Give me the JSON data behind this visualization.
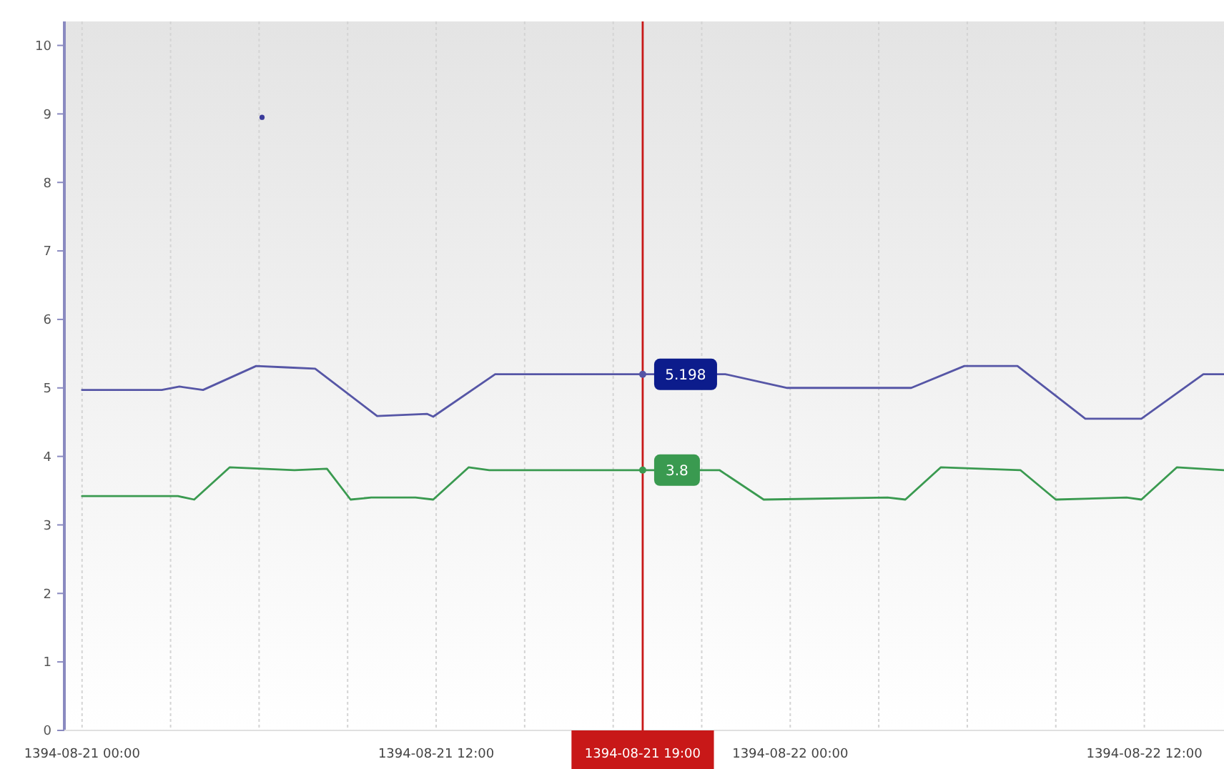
{
  "chart_data": {
    "type": "line",
    "xlim": [
      "1394-08-20T23:24",
      "1394-08-22T14:42"
    ],
    "ylim": [
      0,
      10.35
    ],
    "xticks": [
      {
        "value": "1394-08-21T00:00",
        "label": "1394-08-21 00:00"
      },
      {
        "value": "1394-08-21T03:00",
        "label": null
      },
      {
        "value": "1394-08-21T06:00",
        "label": null
      },
      {
        "value": "1394-08-21T09:00",
        "label": null
      },
      {
        "value": "1394-08-21T12:00",
        "label": "1394-08-21 12:00"
      },
      {
        "value": "1394-08-21T15:00",
        "label": null
      },
      {
        "value": "1394-08-21T18:00",
        "label": null
      },
      {
        "value": "1394-08-21T21:00",
        "label": null
      },
      {
        "value": "1394-08-22T00:00",
        "label": "1394-08-22 00:00"
      },
      {
        "value": "1394-08-22T03:00",
        "label": null
      },
      {
        "value": "1394-08-22T06:00",
        "label": null
      },
      {
        "value": "1394-08-22T09:00",
        "label": null
      },
      {
        "value": "1394-08-22T12:00",
        "label": "1394-08-22 12:00"
      }
    ],
    "yticks": [
      0,
      1,
      2,
      3,
      4,
      5,
      6,
      7,
      8,
      9,
      10
    ],
    "grid": "x",
    "marker": "none",
    "line_style": "solid",
    "series": [
      {
        "color": "#5656a6",
        "x": [
          "1394-08-21T00:00",
          "1394-08-21T02:42",
          "1394-08-21T03:18",
          "1394-08-21T04:06",
          "1394-08-21T05:54",
          "1394-08-21T06:54",
          "1394-08-21T07:54",
          "1394-08-21T10:00",
          "1394-08-21T11:42",
          "1394-08-21T11:54",
          "1394-08-21T14:00",
          "1394-08-21T19:00",
          "1394-08-21T21:48",
          "1394-08-21T23:54",
          "1394-08-22T04:06",
          "1394-08-22T05:54",
          "1394-08-22T07:42",
          "1394-08-22T10:00",
          "1394-08-22T11:54",
          "1394-08-22T14:00",
          "1394-08-22T14:42"
        ],
        "values": [
          4.97,
          4.97,
          5.02,
          4.97,
          5.32,
          5.3,
          5.28,
          4.59,
          4.62,
          4.58,
          5.2,
          5.2,
          5.2,
          5.0,
          5.0,
          5.32,
          5.32,
          4.55,
          4.55,
          5.2,
          5.2
        ]
      },
      {
        "color": "#3a9a50",
        "x": [
          "1394-08-21T00:00",
          "1394-08-21T03:15",
          "1394-08-21T03:48",
          "1394-08-21T05:00",
          "1394-08-21T07:12",
          "1394-08-21T08:18",
          "1394-08-21T09:06",
          "1394-08-21T09:48",
          "1394-08-21T11:18",
          "1394-08-21T11:54",
          "1394-08-21T13:06",
          "1394-08-21T13:48",
          "1394-08-21T19:00",
          "1394-08-21T21:36",
          "1394-08-21T23:06",
          "1394-08-22T03:18",
          "1394-08-22T03:54",
          "1394-08-22T05:06",
          "1394-08-22T07:48",
          "1394-08-22T09:00",
          "1394-08-22T11:24",
          "1394-08-22T11:54",
          "1394-08-22T13:06",
          "1394-08-22T14:42"
        ],
        "values": [
          3.42,
          3.42,
          3.37,
          3.84,
          3.8,
          3.82,
          3.37,
          3.4,
          3.4,
          3.37,
          3.84,
          3.8,
          3.8,
          3.8,
          3.37,
          3.4,
          3.37,
          3.84,
          3.8,
          3.37,
          3.4,
          3.37,
          3.84,
          3.8
        ]
      },
      {
        "type": "scatter",
        "marker": "circle",
        "color": "#3a3a9a",
        "x": [
          "1394-08-21T06:06"
        ],
        "values": [
          8.95
        ]
      }
    ],
    "ref_lines": [
      {
        "axis": "x",
        "value": "1394-08-21T19:00",
        "label": "1394-08-21 19:00",
        "color": "#c81818"
      }
    ],
    "annotations": [
      {
        "text": "5.198",
        "x": "1394-08-21T19:00",
        "y": 5.198
      },
      {
        "text": "3.8",
        "x": "1394-08-21T19:00",
        "y": 3.8
      }
    ]
  }
}
